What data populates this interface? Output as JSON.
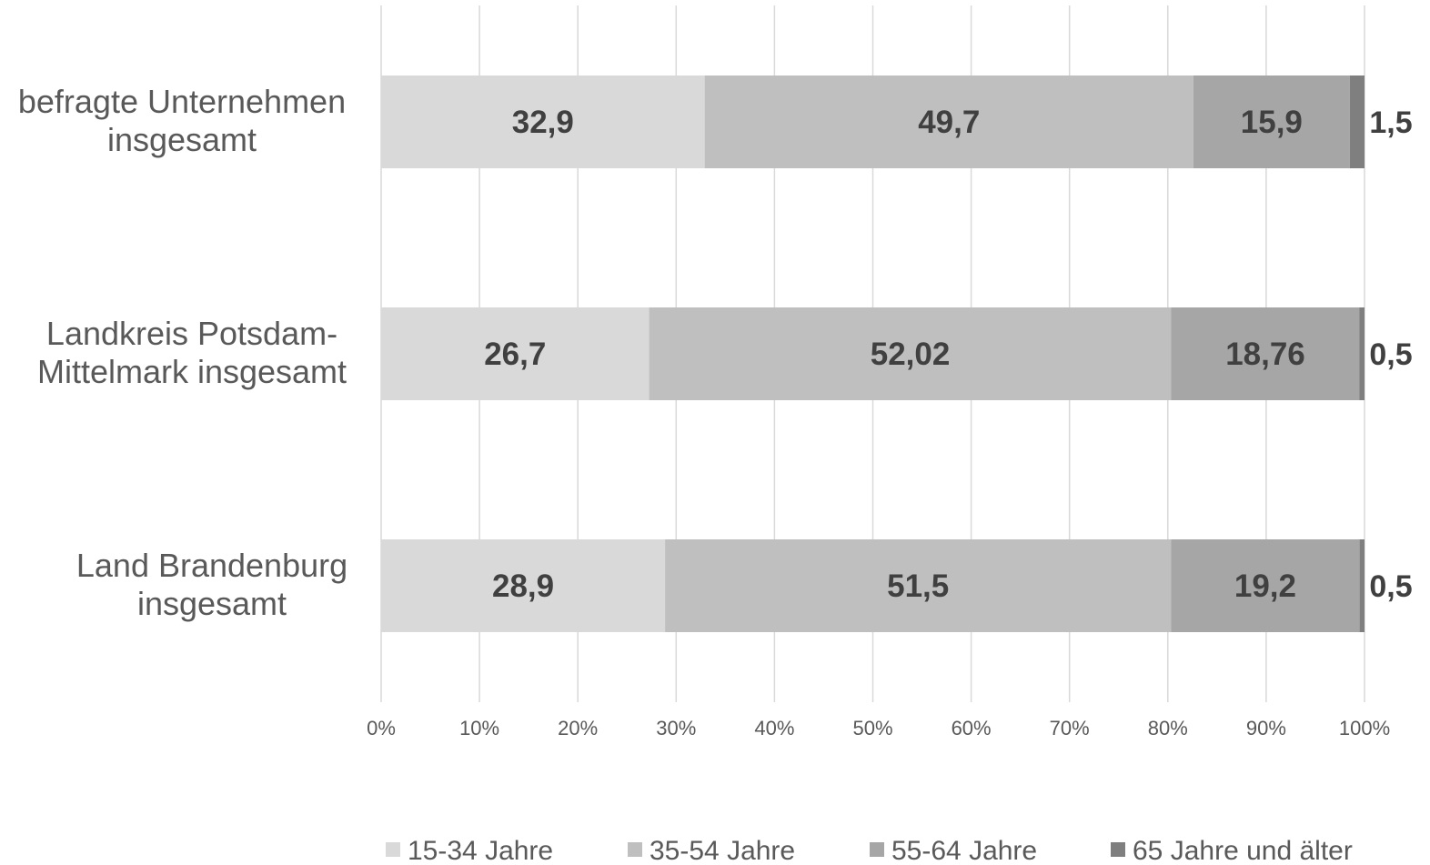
{
  "chart_data": {
    "type": "bar",
    "orientation": "horizontal",
    "stacked": "percent",
    "categories": [
      [
        "befragte Unternehmen",
        "insgesamt"
      ],
      [
        "Landkreis Potsdam-",
        "Mittelmark insgesamt"
      ],
      [
        "Land Brandenburg",
        "insgesamt"
      ]
    ],
    "series": [
      {
        "name": "15-34 Jahre",
        "values": [
          32.9,
          26.7,
          28.9
        ],
        "labels": [
          "32,9",
          "26,7",
          "28,9"
        ],
        "color": "#d9d9d9"
      },
      {
        "name": "35-54 Jahre",
        "values": [
          49.7,
          52.02,
          51.5
        ],
        "labels": [
          "49,7",
          "52,02",
          "51,5"
        ],
        "color": "#bfbfbf"
      },
      {
        "name": "55-64 Jahre",
        "values": [
          15.9,
          18.76,
          19.2
        ],
        "labels": [
          "15,9",
          "18,76",
          "19,2"
        ],
        "color": "#a6a6a6"
      },
      {
        "name": "65 Jahre und älter",
        "values": [
          1.5,
          0.5,
          0.5
        ],
        "labels": [
          "1,5",
          "0,5",
          "0,5"
        ],
        "color": "#7f7f7f"
      }
    ],
    "xlim": [
      0,
      100
    ],
    "xticks": [
      "0%",
      "10%",
      "20%",
      "30%",
      "40%",
      "50%",
      "60%",
      "70%",
      "80%",
      "90%",
      "100%"
    ],
    "grid": true,
    "legend": "bottom",
    "title": "",
    "xlabel": "",
    "ylabel": ""
  }
}
